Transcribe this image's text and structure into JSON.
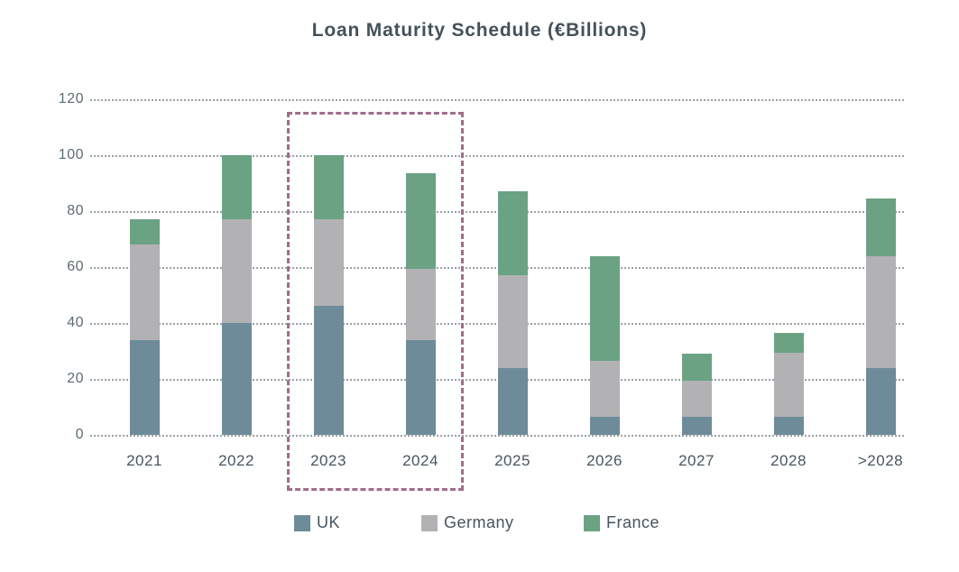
{
  "chart_data": {
    "type": "bar",
    "stacked": true,
    "title": "Loan Maturity Schedule (€Billions)",
    "categories": [
      "2021",
      "2022",
      "2023",
      "2024",
      "2025",
      "2026",
      "2027",
      "2028",
      ">2028"
    ],
    "series": [
      {
        "name": "UK",
        "color": "#6E8B99",
        "values": [
          34,
          40,
          46,
          34,
          24,
          6.5,
          6.5,
          6.5,
          24
        ]
      },
      {
        "name": "Germany",
        "color": "#B2B2B4",
        "values": [
          34,
          37,
          31,
          25.5,
          33,
          20,
          13,
          23,
          40
        ]
      },
      {
        "name": "France",
        "color": "#6BA284",
        "values": [
          9,
          23,
          23,
          34,
          30,
          37.5,
          9.5,
          7,
          20.5
        ]
      }
    ],
    "totals": [
      77,
      100,
      100,
      93.5,
      87,
      64,
      29,
      36.5,
      84.5
    ],
    "ylim": [
      0,
      120
    ],
    "yticks": [
      0,
      20,
      40,
      60,
      80,
      100,
      120
    ],
    "grid": "dotted-horizontal",
    "legend_position": "bottom",
    "legend_labels": [
      "UK",
      "Germany",
      "France"
    ],
    "highlight": {
      "categories": [
        "2023",
        "2024"
      ],
      "style": "dashed-rectangle",
      "color": "#A06C8C"
    }
  }
}
